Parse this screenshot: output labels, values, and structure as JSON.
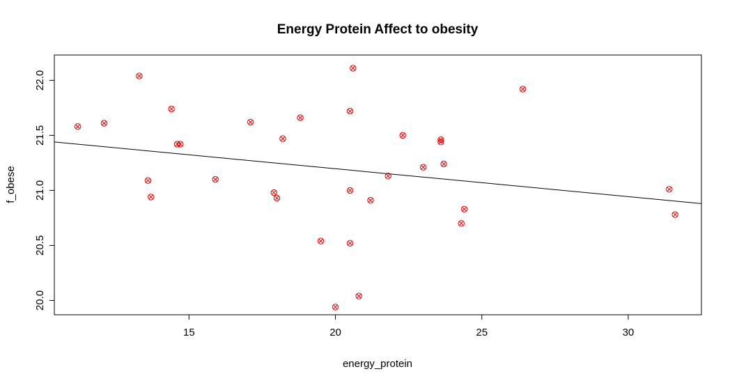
{
  "chart_data": {
    "type": "scatter",
    "title": "Energy Protein Affect to obesity",
    "xlabel": "energy_protein",
    "ylabel": "f_obese",
    "xlim": [
      10.4,
      32.5
    ],
    "ylim": [
      19.87,
      22.23
    ],
    "x_ticks": [
      15,
      20,
      25,
      30
    ],
    "x_tick_labels": [
      "15",
      "20",
      "25",
      "30"
    ],
    "y_ticks": [
      20.0,
      20.5,
      21.0,
      21.5,
      22.0
    ],
    "y_tick_labels": [
      "20.0",
      "20.5",
      "21.0",
      "21.5",
      "22.0"
    ],
    "grid": false,
    "point_color": "#e00000",
    "line_color": "#000000",
    "points": [
      {
        "x": 11.2,
        "y": 21.58
      },
      {
        "x": 12.1,
        "y": 21.61
      },
      {
        "x": 13.3,
        "y": 22.04
      },
      {
        "x": 13.6,
        "y": 21.09
      },
      {
        "x": 13.7,
        "y": 20.94
      },
      {
        "x": 14.4,
        "y": 21.74
      },
      {
        "x": 14.6,
        "y": 21.42
      },
      {
        "x": 14.7,
        "y": 21.42
      },
      {
        "x": 15.9,
        "y": 21.1
      },
      {
        "x": 17.1,
        "y": 21.62
      },
      {
        "x": 17.9,
        "y": 20.98
      },
      {
        "x": 18.0,
        "y": 20.93
      },
      {
        "x": 18.2,
        "y": 21.47
      },
      {
        "x": 18.8,
        "y": 21.66
      },
      {
        "x": 19.5,
        "y": 20.54
      },
      {
        "x": 20.0,
        "y": 19.94
      },
      {
        "x": 20.5,
        "y": 21.72
      },
      {
        "x": 20.5,
        "y": 21.0
      },
      {
        "x": 20.5,
        "y": 20.52
      },
      {
        "x": 20.6,
        "y": 22.11
      },
      {
        "x": 20.8,
        "y": 20.04
      },
      {
        "x": 21.2,
        "y": 20.91
      },
      {
        "x": 21.8,
        "y": 21.13
      },
      {
        "x": 22.3,
        "y": 21.5
      },
      {
        "x": 23.0,
        "y": 21.21
      },
      {
        "x": 23.6,
        "y": 21.46
      },
      {
        "x": 23.6,
        "y": 21.44
      },
      {
        "x": 23.7,
        "y": 21.24
      },
      {
        "x": 24.3,
        "y": 20.7
      },
      {
        "x": 24.4,
        "y": 20.83
      },
      {
        "x": 26.4,
        "y": 21.92
      },
      {
        "x": 31.4,
        "y": 21.01
      },
      {
        "x": 31.6,
        "y": 20.78
      }
    ],
    "regression_line": {
      "x": [
        10.4,
        32.5
      ],
      "y": [
        21.44,
        20.88
      ]
    }
  }
}
